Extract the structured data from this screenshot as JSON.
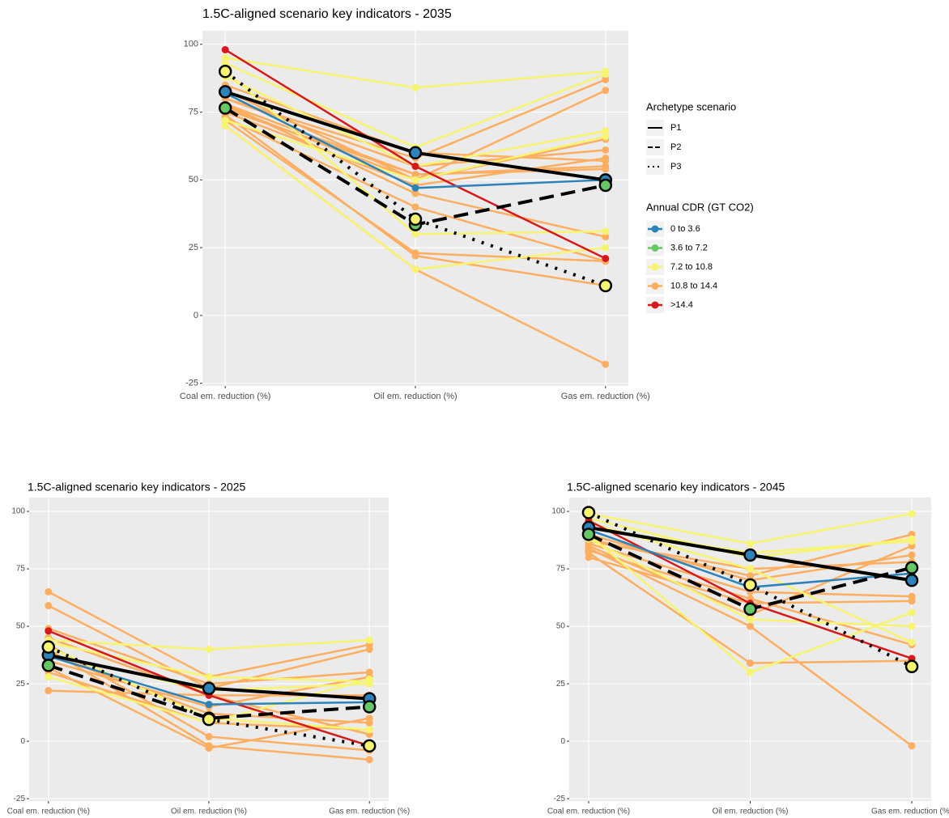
{
  "chart_data": [
    {
      "type": "line",
      "title": "1.5C-aligned scenario key indicators - 2035",
      "categories": [
        "Coal em. reduction (%)",
        "Oil em. reduction (%)",
        "Gas em. reduction (%)"
      ],
      "ylim": [
        -26,
        105
      ],
      "yticks": [
        -25,
        0,
        25,
        50,
        75,
        100
      ],
      "grid": true,
      "legend": {
        "linetype_title": "Archetype scenario",
        "linetypes": [
          {
            "label": "P1",
            "style": "solid"
          },
          {
            "label": "P2",
            "style": "dashed"
          },
          {
            "label": "P3",
            "style": "dotted"
          }
        ],
        "color_title": "Annual CDR (GT CO2)",
        "colors": [
          {
            "label": "0 to 3.6",
            "color": "#2b83ba"
          },
          {
            "label": "3.6 to 7.2",
            "color": "#66c766"
          },
          {
            "label": "7.2 to 10.8",
            "color": "#f7f46f"
          },
          {
            "label": "10.8 to 14.4",
            "color": "#fdae61"
          },
          {
            "label": ">14.4",
            "color": "#d7191c"
          }
        ]
      },
      "series": [
        {
          "color": "#fdae61",
          "values": [
            85,
            60,
            57
          ]
        },
        {
          "color": "#fdae61",
          "values": [
            80,
            55,
            61
          ]
        },
        {
          "color": "#fdae61",
          "values": [
            78,
            52,
            55
          ]
        },
        {
          "color": "#fdae61",
          "values": [
            77,
            50,
            65
          ]
        },
        {
          "color": "#fdae61",
          "values": [
            75,
            48,
            58
          ]
        },
        {
          "color": "#fdae61",
          "values": [
            73,
            40,
            20
          ]
        },
        {
          "color": "#fdae61",
          "values": [
            72,
            23,
            20
          ]
        },
        {
          "color": "#fdae61",
          "values": [
            70,
            17,
            -18
          ]
        },
        {
          "color": "#fdae61",
          "values": [
            80,
            58,
            87
          ]
        },
        {
          "color": "#fdae61",
          "values": [
            83,
            50,
            83
          ]
        },
        {
          "color": "#fdae61",
          "values": [
            78,
            45,
            29
          ]
        },
        {
          "color": "#fdae61",
          "values": [
            76,
            52,
            54
          ]
        },
        {
          "color": "#fdae61",
          "values": [
            74,
            22,
            11
          ]
        },
        {
          "color": "#f7f46f",
          "values": [
            95,
            84,
            90
          ]
        },
        {
          "color": "#f7f46f",
          "values": [
            93,
            62,
            89
          ]
        },
        {
          "color": "#f7f46f",
          "values": [
            90,
            30,
            31
          ]
        },
        {
          "color": "#f7f46f",
          "values": [
            88,
            55,
            68
          ]
        },
        {
          "color": "#f7f46f",
          "values": [
            70,
            17,
            25
          ]
        },
        {
          "color": "#f7f46f",
          "values": [
            72,
            50,
            66
          ]
        },
        {
          "color": "#d7191c",
          "values": [
            98,
            55,
            21
          ]
        },
        {
          "color": "#2b83ba",
          "values": [
            82,
            47,
            50
          ]
        },
        {
          "color": "#2b83ba",
          "line_style": "solid",
          "values": [
            82.5,
            60,
            50
          ]
        },
        {
          "color": "#66c766",
          "line_style": "dashed",
          "values": [
            76.5,
            33.5,
            48
          ]
        },
        {
          "color": "#f7f46f",
          "line_style": "dotted",
          "values": [
            90,
            35.5,
            11
          ]
        }
      ]
    },
    {
      "type": "line",
      "title": "1.5C-aligned scenario key indicators - 2025",
      "categories": [
        "Coal em. reduction (%)",
        "Oil em. reduction (%)",
        "Gas em. reduction (%)"
      ],
      "ylim": [
        -26,
        106
      ],
      "yticks": [
        -25,
        0,
        25,
        50,
        75,
        100
      ],
      "grid": true,
      "series": [
        {
          "color": "#fdae61",
          "values": [
            65,
            28,
            42
          ]
        },
        {
          "color": "#fdae61",
          "values": [
            59,
            23,
            40
          ]
        },
        {
          "color": "#fdae61",
          "values": [
            49,
            25,
            30
          ]
        },
        {
          "color": "#fdae61",
          "values": [
            45,
            20,
            20
          ]
        },
        {
          "color": "#fdae61",
          "values": [
            42,
            2,
            -4
          ]
        },
        {
          "color": "#fdae61",
          "values": [
            40,
            -2,
            -8
          ]
        },
        {
          "color": "#fdae61",
          "values": [
            38,
            12,
            8
          ]
        },
        {
          "color": "#fdae61",
          "values": [
            35,
            15,
            28
          ]
        },
        {
          "color": "#fdae61",
          "values": [
            32,
            -3,
            10
          ]
        },
        {
          "color": "#fdae61",
          "values": [
            22,
            20,
            3
          ]
        },
        {
          "color": "#fdae61",
          "values": [
            30,
            8,
            5
          ]
        },
        {
          "color": "#f7f46f",
          "values": [
            44,
            40,
            44
          ]
        },
        {
          "color": "#f7f46f",
          "values": [
            43,
            28,
            26
          ]
        },
        {
          "color": "#f7f46f",
          "values": [
            41,
            10,
            5
          ]
        },
        {
          "color": "#f7f46f",
          "values": [
            28,
            8,
            27
          ]
        },
        {
          "color": "#f7f46f",
          "values": [
            38,
            22,
            25
          ]
        },
        {
          "color": "#d7191c",
          "values": [
            48,
            20,
            -2
          ]
        },
        {
          "color": "#2b83ba",
          "values": [
            37,
            16,
            17
          ]
        },
        {
          "color": "#2b83ba",
          "line_style": "solid",
          "values": [
            37.5,
            23,
            18.5
          ]
        },
        {
          "color": "#66c766",
          "line_style": "dashed",
          "values": [
            33,
            10,
            15
          ]
        },
        {
          "color": "#f7f46f",
          "line_style": "dotted",
          "values": [
            41,
            9.5,
            -2
          ]
        }
      ]
    },
    {
      "type": "line",
      "title": "1.5C-aligned scenario key indicators - 2045",
      "categories": [
        "Coal em. reduction (%)",
        "Oil em. reduction (%)",
        "Gas em. reduction (%)"
      ],
      "ylim": [
        -26,
        106
      ],
      "yticks": [
        -25,
        0,
        25,
        50,
        75,
        100
      ],
      "grid": true,
      "series": [
        {
          "color": "#fdae61",
          "values": [
            84,
            50,
            -2
          ]
        },
        {
          "color": "#fdae61",
          "values": [
            82,
            34,
            35
          ]
        },
        {
          "color": "#fdae61",
          "values": [
            80,
            60,
            61
          ]
        },
        {
          "color": "#fdae61",
          "values": [
            86,
            65,
            63
          ]
        },
        {
          "color": "#fdae61",
          "values": [
            90,
            70,
            81
          ]
        },
        {
          "color": "#fdae61",
          "values": [
            88,
            72,
            90
          ]
        },
        {
          "color": "#fdae61",
          "values": [
            85,
            55,
            85
          ]
        },
        {
          "color": "#fdae61",
          "values": [
            83,
            62,
            42
          ]
        },
        {
          "color": "#fdae61",
          "values": [
            87,
            75,
            78
          ]
        },
        {
          "color": "#f7f46f",
          "values": [
            99,
            86,
            99
          ]
        },
        {
          "color": "#f7f46f",
          "values": [
            97,
            80,
            88
          ]
        },
        {
          "color": "#f7f46f",
          "values": [
            90,
            30,
            56
          ]
        },
        {
          "color": "#f7f46f",
          "values": [
            88,
            53,
            50
          ]
        },
        {
          "color": "#f7f46f",
          "values": [
            95,
            75,
            43
          ]
        },
        {
          "color": "#f7f46f",
          "values": [
            93,
            82,
            87
          ]
        },
        {
          "color": "#d7191c",
          "values": [
            96,
            60,
            36
          ]
        },
        {
          "color": "#2b83ba",
          "values": [
            92,
            67,
            73
          ]
        },
        {
          "color": "#2b83ba",
          "line_style": "solid",
          "values": [
            93,
            81,
            70
          ]
        },
        {
          "color": "#66c766",
          "line_style": "dashed",
          "values": [
            90,
            57.5,
            75.5
          ]
        },
        {
          "color": "#f7f46f",
          "line_style": "dotted",
          "values": [
            99.5,
            68,
            32.5
          ]
        }
      ]
    }
  ]
}
